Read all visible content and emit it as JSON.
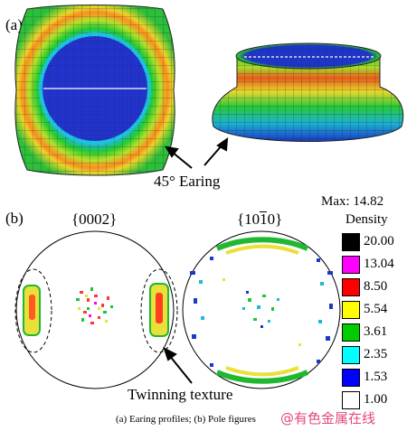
{
  "panels": {
    "a_label": "(a)",
    "b_label": "(b)"
  },
  "earing": {
    "label": "45° Earing"
  },
  "pole_figures": {
    "left_title": "{0002}",
    "right_title": "{10̅ 1̅ 0}"
  },
  "pole_titles_display": {
    "left": "{0002}",
    "right": "{1010}"
  },
  "annotation": {
    "twinning": "Twinning texture"
  },
  "colorbar": {
    "max_label": "Max: 14.82",
    "title": "Density",
    "levels": [
      {
        "value": "20.00",
        "color": "#000000"
      },
      {
        "value": "13.04",
        "color": "#ff00ff"
      },
      {
        "value": "8.50",
        "color": "#ff0000"
      },
      {
        "value": "5.54",
        "color": "#ffff00"
      },
      {
        "value": "3.61",
        "color": "#00cc00"
      },
      {
        "value": "2.35",
        "color": "#00ffff"
      },
      {
        "value": "1.53",
        "color": "#0000ff"
      },
      {
        "value": "1.00",
        "color": "#ffffff"
      }
    ]
  },
  "caption": "(a) Earing profiles; (b) Pole figures",
  "watermark": "@有色金属在线"
}
